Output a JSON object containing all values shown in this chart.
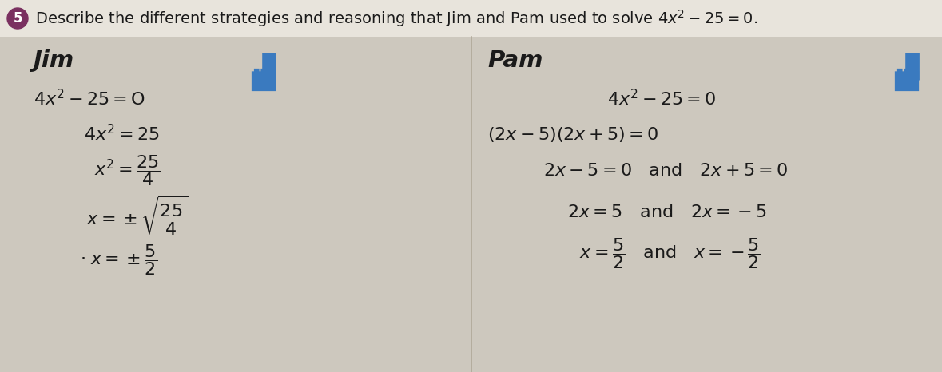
{
  "bg_color": "#cdc8be",
  "title_bg": "#cdc8be",
  "title": "Describe the different strategies and reasoning that Jim and Pam used to solve $4x^2 - 25 = 0$.",
  "title_plain": "Describe the different strategies and reasoning that Jim and Pam used to solve 4x",
  "num_badge_color": "#7a3060",
  "thumb_color": "#3a7abf",
  "text_color": "#1a1a1a",
  "divider_color": "#b0a898",
  "font_size_title": 14,
  "font_size_name": 21,
  "font_size_math": 15,
  "jim_name": "Jim",
  "pam_name": "Pam"
}
